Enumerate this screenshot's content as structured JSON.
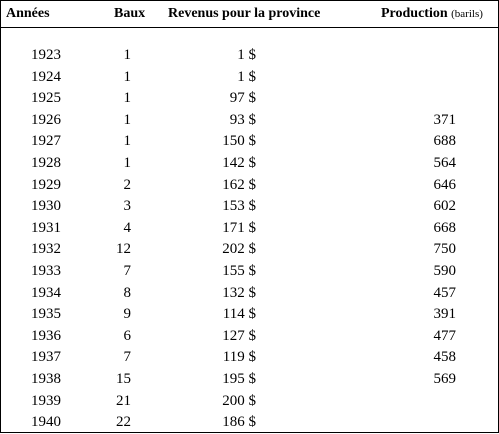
{
  "headers": {
    "annees": "Années",
    "baux": "Baux",
    "revenus": "Revenus pour la province",
    "production": "Production",
    "production_unit": "(barils)"
  },
  "rows": [
    {
      "annee": "1923",
      "baux": "1",
      "revenus": "1 $",
      "production": ""
    },
    {
      "annee": "1924",
      "baux": "1",
      "revenus": "1 $",
      "production": ""
    },
    {
      "annee": "1925",
      "baux": "1",
      "revenus": "97 $",
      "production": ""
    },
    {
      "annee": "1926",
      "baux": "1",
      "revenus": "93 $",
      "production": "371"
    },
    {
      "annee": "1927",
      "baux": "1",
      "revenus": "150 $",
      "production": "688"
    },
    {
      "annee": "1928",
      "baux": "1",
      "revenus": "142 $",
      "production": "564"
    },
    {
      "annee": "1929",
      "baux": "2",
      "revenus": "162 $",
      "production": "646"
    },
    {
      "annee": "1930",
      "baux": "3",
      "revenus": "153 $",
      "production": "602"
    },
    {
      "annee": "1931",
      "baux": "4",
      "revenus": "171 $",
      "production": "668"
    },
    {
      "annee": "1932",
      "baux": "12",
      "revenus": "202 $",
      "production": "750"
    },
    {
      "annee": "1933",
      "baux": "7",
      "revenus": "155 $",
      "production": "590"
    },
    {
      "annee": "1934",
      "baux": "8",
      "revenus": "132 $",
      "production": "457"
    },
    {
      "annee": "1935",
      "baux": "9",
      "revenus": "114 $",
      "production": "391"
    },
    {
      "annee": "1936",
      "baux": "6",
      "revenus": "127 $",
      "production": "477"
    },
    {
      "annee": "1937",
      "baux": "7",
      "revenus": "119 $",
      "production": "458"
    },
    {
      "annee": "1938",
      "baux": "15",
      "revenus": "195 $",
      "production": "569"
    },
    {
      "annee": "1939",
      "baux": "21",
      "revenus": "200 $",
      "production": ""
    },
    {
      "annee": "1940",
      "baux": "22",
      "revenus": "186 $",
      "production": ""
    }
  ]
}
